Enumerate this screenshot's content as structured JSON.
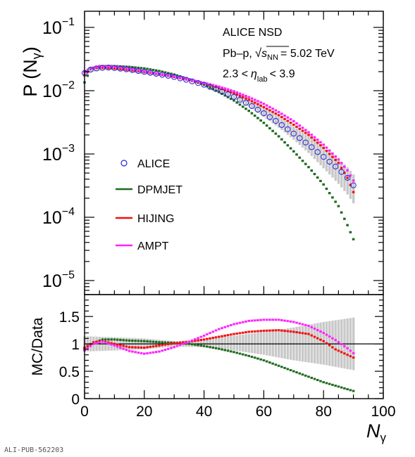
{
  "chart_data": [
    {
      "type": "scatter",
      "panel": "top",
      "ylabel_main": "P (N",
      "ylabel_sub": "γ",
      "ylabel_close": ")",
      "yscale": "log",
      "xlim": [
        0,
        100
      ],
      "ylim": [
        6e-06,
        0.18
      ],
      "ytick_labels": [
        {
          "v": 1e-05,
          "exp": "−5"
        },
        {
          "v": 0.0001,
          "exp": "−4"
        },
        {
          "v": 0.001,
          "exp": "−3"
        },
        {
          "v": 0.01,
          "exp": "−2"
        },
        {
          "v": 0.1,
          "exp": "−1"
        }
      ],
      "annotations": {
        "line1": "ALICE NSD",
        "line2_pre": "Pb–p,",
        "line2_s": "s",
        "line2_sub": "NN",
        "line2_post": "= 5.02 TeV",
        "line3_pre": "2.3 <",
        "line3_eta": "η",
        "line3_sub": "lab",
        "line3_post": "< 3.9"
      },
      "legend_position": "middle-left",
      "series": [
        {
          "name": "ALICE",
          "color": "#2222dd",
          "marker": "open-circle",
          "points": [
            [
              0,
              0.019
            ],
            [
              2,
              0.0215
            ],
            [
              4,
              0.0225
            ],
            [
              6,
              0.023
            ],
            [
              8,
              0.0232
            ],
            [
              10,
              0.0228
            ],
            [
              15,
              0.0215
            ],
            [
              20,
              0.0198
            ],
            [
              25,
              0.0182
            ],
            [
              30,
              0.0165
            ],
            [
              35,
              0.0145
            ],
            [
              40,
              0.0124
            ],
            [
              45,
              0.0102
            ],
            [
              50,
              0.008
            ],
            [
              55,
              0.0061
            ],
            [
              60,
              0.0044
            ],
            [
              65,
              0.0031
            ],
            [
              70,
              0.0021
            ],
            [
              75,
              0.0014
            ],
            [
              80,
              0.0009
            ],
            [
              85,
              0.00058
            ],
            [
              88,
              0.00042
            ],
            [
              90,
              0.00032
            ]
          ]
        },
        {
          "name": "DPMJET",
          "color": "#1e6a1e",
          "marker": "square",
          "points": [
            [
              0,
              0.0135
            ],
            [
              2,
              0.022
            ],
            [
              5,
              0.0245
            ],
            [
              10,
              0.0245
            ],
            [
              15,
              0.0238
            ],
            [
              20,
              0.0225
            ],
            [
              25,
              0.0205
            ],
            [
              30,
              0.018
            ],
            [
              35,
              0.0152
            ],
            [
              40,
              0.0124
            ],
            [
              45,
              0.0095
            ],
            [
              50,
              0.007
            ],
            [
              55,
              0.0048
            ],
            [
              60,
              0.0031
            ],
            [
              65,
              0.0019
            ],
            [
              70,
              0.0011
            ],
            [
              75,
              0.00062
            ],
            [
              80,
              0.00033
            ],
            [
              85,
              0.00015
            ],
            [
              88,
              7.5e-05
            ],
            [
              90,
              4.5e-05
            ]
          ]
        },
        {
          "name": "HIJING",
          "color": "#ee1111",
          "marker": "square",
          "points": [
            [
              0,
              0.0175
            ],
            [
              2,
              0.0225
            ],
            [
              5,
              0.0232
            ],
            [
              10,
              0.0225
            ],
            [
              15,
              0.0212
            ],
            [
              20,
              0.0198
            ],
            [
              25,
              0.0182
            ],
            [
              30,
              0.0165
            ],
            [
              35,
              0.0148
            ],
            [
              40,
              0.013
            ],
            [
              45,
              0.011
            ],
            [
              50,
              0.0091
            ],
            [
              55,
              0.0072
            ],
            [
              60,
              0.0055
            ],
            [
              65,
              0.0041
            ],
            [
              70,
              0.0029
            ],
            [
              75,
              0.002
            ],
            [
              80,
              0.00125
            ],
            [
              85,
              0.00072
            ],
            [
              88,
              0.00042
            ],
            [
              90,
              0.00025
            ]
          ]
        },
        {
          "name": "AMPT",
          "color": "#ff22ff",
          "marker": "square",
          "points": [
            [
              0,
              0.0195
            ],
            [
              2,
              0.0225
            ],
            [
              5,
              0.0245
            ],
            [
              10,
              0.024
            ],
            [
              15,
              0.0222
            ],
            [
              20,
              0.0203
            ],
            [
              25,
              0.0184
            ],
            [
              30,
              0.0168
            ],
            [
              35,
              0.015
            ],
            [
              40,
              0.0133
            ],
            [
              45,
              0.0116
            ],
            [
              50,
              0.0098
            ],
            [
              55,
              0.0079
            ],
            [
              60,
              0.0062
            ],
            [
              65,
              0.0046
            ],
            [
              70,
              0.0033
            ],
            [
              75,
              0.0022
            ],
            [
              80,
              0.0014
            ],
            [
              85,
              0.00082
            ],
            [
              88,
              0.00055
            ],
            [
              90,
              0.00038
            ]
          ]
        }
      ],
      "uncertainty_band": {
        "color": "#c8c8c8",
        "rel_points": [
          [
            0,
            0.9
          ],
          [
            10,
            0.93
          ],
          [
            20,
            0.92
          ],
          [
            30,
            0.96
          ],
          [
            40,
            0.96
          ],
          [
            50,
            0.94
          ],
          [
            55,
            0.92
          ],
          [
            60,
            0.88
          ],
          [
            65,
            0.84
          ],
          [
            70,
            0.8
          ],
          [
            75,
            0.74
          ],
          [
            80,
            0.66
          ],
          [
            85,
            0.58
          ],
          [
            90,
            0.52
          ]
        ],
        "rel_upper": [
          [
            0,
            1.12
          ],
          [
            10,
            1.08
          ],
          [
            20,
            1.08
          ],
          [
            30,
            1.05
          ],
          [
            40,
            1.04
          ],
          [
            50,
            1.1
          ],
          [
            55,
            1.15
          ],
          [
            60,
            1.2
          ],
          [
            65,
            1.25
          ],
          [
            70,
            1.3
          ],
          [
            75,
            1.35
          ],
          [
            80,
            1.4
          ],
          [
            85,
            1.44
          ],
          [
            90,
            1.48
          ]
        ]
      }
    },
    {
      "type": "line",
      "panel": "bottom",
      "ylabel": "MC/Data",
      "xlabel_main": "N",
      "xlabel_sub": "γ",
      "xlim": [
        0,
        100
      ],
      "ylim": [
        0,
        1.9
      ],
      "xticks": [
        0,
        20,
        40,
        60,
        80,
        100
      ],
      "yticks": [
        {
          "v": 0,
          "t": "0"
        },
        {
          "v": 0.5,
          "t": "0.5"
        },
        {
          "v": 1,
          "t": "1"
        },
        {
          "v": 1.5,
          "t": "1.5"
        }
      ],
      "reference_line": 1,
      "series": [
        {
          "name": "DPMJET",
          "color": "#1e6a1e",
          "points": [
            [
              0,
              0.9
            ],
            [
              3,
              1.02
            ],
            [
              6,
              1.08
            ],
            [
              10,
              1.08
            ],
            [
              15,
              1.06
            ],
            [
              20,
              1.05
            ],
            [
              25,
              1.03
            ],
            [
              30,
              1.02
            ],
            [
              35,
              1.0
            ],
            [
              40,
              0.96
            ],
            [
              45,
              0.91
            ],
            [
              50,
              0.85
            ],
            [
              55,
              0.78
            ],
            [
              60,
              0.7
            ],
            [
              65,
              0.6
            ],
            [
              70,
              0.5
            ],
            [
              75,
              0.4
            ],
            [
              80,
              0.3
            ],
            [
              85,
              0.22
            ],
            [
              90,
              0.14
            ]
          ]
        },
        {
          "name": "HIJING",
          "color": "#ee1111",
          "points": [
            [
              0,
              0.93
            ],
            [
              3,
              1.03
            ],
            [
              6,
              1.05
            ],
            [
              10,
              1.0
            ],
            [
              15,
              0.94
            ],
            [
              20,
              0.93
            ],
            [
              25,
              0.97
            ],
            [
              30,
              1.01
            ],
            [
              35,
              1.04
            ],
            [
              40,
              1.08
            ],
            [
              45,
              1.13
            ],
            [
              50,
              1.18
            ],
            [
              55,
              1.22
            ],
            [
              60,
              1.24
            ],
            [
              65,
              1.25
            ],
            [
              70,
              1.22
            ],
            [
              75,
              1.18
            ],
            [
              80,
              1.05
            ],
            [
              84,
              0.9
            ],
            [
              88,
              0.8
            ],
            [
              90,
              0.75
            ]
          ]
        },
        {
          "name": "AMPT",
          "color": "#ff22ff",
          "points": [
            [
              0,
              0.88
            ],
            [
              3,
              1.0
            ],
            [
              6,
              1.04
            ],
            [
              10,
              0.97
            ],
            [
              15,
              0.87
            ],
            [
              20,
              0.82
            ],
            [
              25,
              0.86
            ],
            [
              30,
              0.94
            ],
            [
              35,
              1.04
            ],
            [
              40,
              1.15
            ],
            [
              45,
              1.27
            ],
            [
              50,
              1.36
            ],
            [
              55,
              1.42
            ],
            [
              60,
              1.44
            ],
            [
              65,
              1.44
            ],
            [
              70,
              1.4
            ],
            [
              75,
              1.33
            ],
            [
              80,
              1.2
            ],
            [
              84,
              1.07
            ],
            [
              88,
              0.92
            ],
            [
              90,
              0.83
            ]
          ]
        }
      ],
      "uncertainty_band": {
        "color": "#c8c8c8",
        "rel_points": [
          [
            0,
            0.86
          ],
          [
            10,
            0.88
          ],
          [
            20,
            0.9
          ],
          [
            30,
            0.95
          ],
          [
            40,
            0.94
          ],
          [
            50,
            0.88
          ],
          [
            60,
            0.8
          ],
          [
            70,
            0.7
          ],
          [
            80,
            0.62
          ],
          [
            90,
            0.52
          ]
        ],
        "rel_upper": [
          [
            0,
            1.14
          ],
          [
            10,
            1.12
          ],
          [
            20,
            1.1
          ],
          [
            30,
            1.05
          ],
          [
            40,
            1.08
          ],
          [
            50,
            1.15
          ],
          [
            60,
            1.22
          ],
          [
            70,
            1.3
          ],
          [
            80,
            1.4
          ],
          [
            90,
            1.48
          ]
        ]
      }
    }
  ],
  "footer": "ALI-PUB-562203"
}
